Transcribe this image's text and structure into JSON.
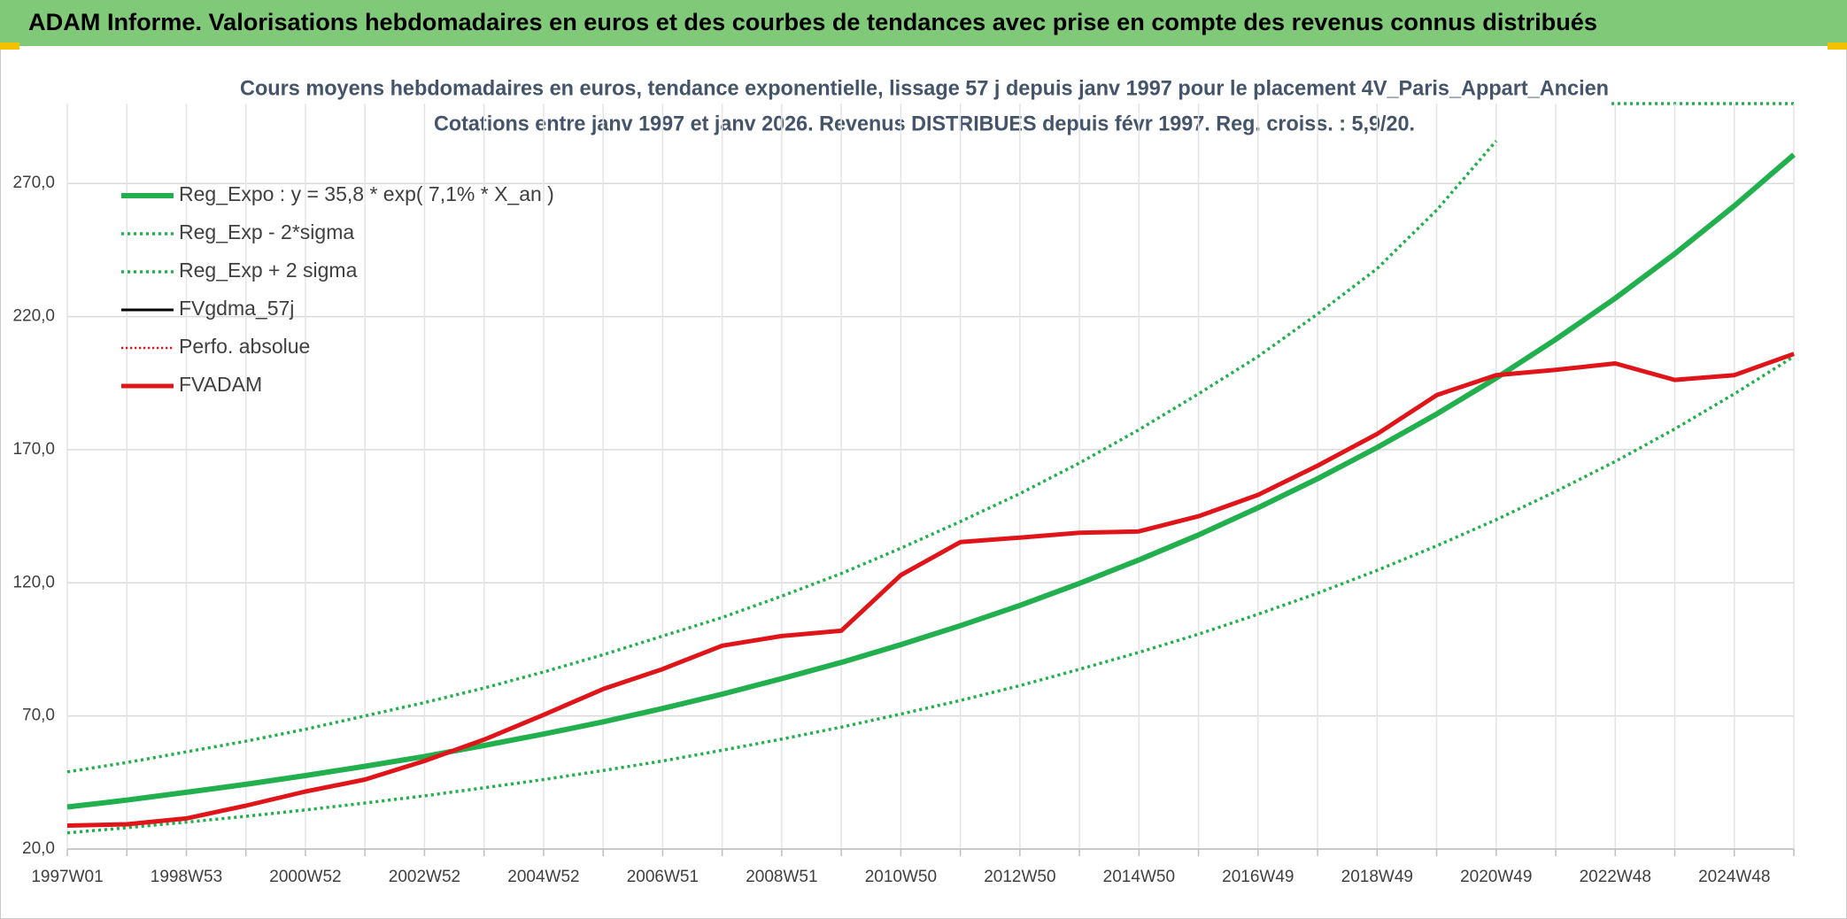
{
  "header": {
    "title": "ADAM Informe. Valorisations hebdomadaires en euros et des courbes de tendances avec prise en compte des revenus connus distribués"
  },
  "chart_data": {
    "type": "line",
    "title": "Cours moyens hebdomadaires en euros, tendance exponentielle, lissage 57 j depuis janv 1997 pour le placement 4V_Paris_Appart_Ancien",
    "subtitle": "Cotations entre janv 1997 et janv 2026. Revenus DISTRIBUES depuis févr 1997. Reg. croiss. : 5,9/20.",
    "categories": [
      "1997W01",
      null,
      "1998W53",
      null,
      "2000W52",
      null,
      "2002W52",
      null,
      "2004W52",
      null,
      "2006W51",
      null,
      "2008W51",
      null,
      "2010W50",
      null,
      "2012W50",
      null,
      "2014W50",
      null,
      "2016W49",
      null,
      "2018W49",
      null,
      "2020W49",
      null,
      "2022W48",
      null,
      "2024W48",
      null
    ],
    "ylim": [
      20,
      300
    ],
    "yticks": [
      {
        "value": 20,
        "label": "20,0"
      },
      {
        "value": 70,
        "label": "70,0"
      },
      {
        "value": 120,
        "label": "120,0"
      },
      {
        "value": 170,
        "label": "170,0"
      },
      {
        "value": 220,
        "label": "220,0"
      },
      {
        "value": 270,
        "label": "270,0"
      }
    ],
    "grid": true,
    "legend": "top-left",
    "series": [
      {
        "name": "Reg_Expo : y = 35,8 * exp( 7,1% *  X_an )",
        "color": "#22b04e",
        "line_style": "solid",
        "line_width": 6,
        "values": [
          35.8,
          38.4,
          41.3,
          44.3,
          47.6,
          51.1,
          54.8,
          58.9,
          63.2,
          67.8,
          72.8,
          78.2,
          84.0,
          90.1,
          96.8,
          103.9,
          111.5,
          119.8,
          128.6,
          138.0,
          148.2,
          159.1,
          170.8,
          183.4,
          196.9,
          211.4,
          226.9,
          243.6,
          261.6,
          280.8
        ]
      },
      {
        "name": "Reg_Exp - 2*sigma",
        "color": "#22b04e",
        "line_style": "dotted",
        "line_width": 3.5,
        "values": [
          26.1,
          28.0,
          30.1,
          32.3,
          34.7,
          37.3,
          40.0,
          43.0,
          46.1,
          49.5,
          53.1,
          57.1,
          61.3,
          65.8,
          70.7,
          75.8,
          81.4,
          87.5,
          93.9,
          100.7,
          108.2,
          116.1,
          124.7,
          133.9,
          143.7,
          154.3,
          165.6,
          177.8,
          191.0,
          205.0
        ]
      },
      {
        "name": "Reg_Exp + 2 sigma",
        "color": "#22b04e",
        "line_style": "dotted",
        "line_width": 3.5,
        "values": [
          49,
          52.5,
          56.5,
          60.5,
          65,
          70,
          75,
          80.5,
          86.5,
          93,
          100,
          107,
          115,
          123.5,
          133,
          143,
          153.5,
          165,
          177.5,
          191,
          205,
          221,
          238,
          260,
          286,
          null,
          null,
          null,
          null,
          null
        ]
      },
      {
        "name": "FVgdma_57j",
        "color": "#000000",
        "line_style": "solid",
        "line_width": 3,
        "values": [
          28.8,
          29.3,
          31.5,
          36.3,
          41.6,
          46.1,
          53.1,
          61.1,
          70.4,
          80.1,
          87.6,
          96.4,
          100,
          102,
          122.9,
          135.3,
          137,
          138.8,
          139.3,
          145,
          153,
          164,
          175.9,
          190.5,
          198,
          200,
          202.4,
          196.2,
          198,
          206
        ]
      },
      {
        "name": "Perfo. absolue",
        "color": "#e0151a",
        "line_style": "dotted",
        "line_width": 2.5,
        "values": [
          28.8,
          29.3,
          31.5,
          36.3,
          41.6,
          46.1,
          53.1,
          61.1,
          70.4,
          80.1,
          87.6,
          96.4,
          100,
          102,
          122.9,
          135.3,
          137,
          138.8,
          139.3,
          145,
          153,
          164,
          175.9,
          190.5,
          198,
          200,
          202.4,
          196.2,
          198,
          206
        ]
      },
      {
        "name": "FVADAM",
        "color": "#e0151a",
        "line_style": "solid",
        "line_width": 5,
        "values": [
          28.8,
          29.3,
          31.5,
          36.3,
          41.6,
          46.1,
          53.1,
          61.1,
          70.4,
          80.1,
          87.6,
          96.4,
          100,
          102,
          122.9,
          135.3,
          137,
          138.8,
          139.3,
          145,
          153,
          164,
          175.9,
          190.5,
          198,
          200,
          202.4,
          196.2,
          198,
          206
        ]
      }
    ]
  }
}
